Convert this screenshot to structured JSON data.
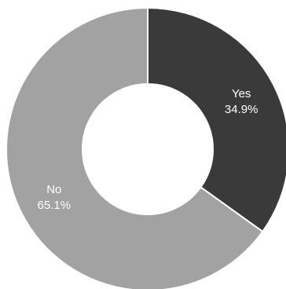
{
  "chart_data": {
    "type": "pie",
    "variant": "donut",
    "categories": [
      "Yes",
      "No"
    ],
    "values": [
      34.9,
      65.1
    ],
    "value_labels": [
      "34.9%",
      "65.1%"
    ],
    "colors": [
      "#3a3a3a",
      "#a2a2a2"
    ],
    "title": "",
    "legend": "none"
  }
}
